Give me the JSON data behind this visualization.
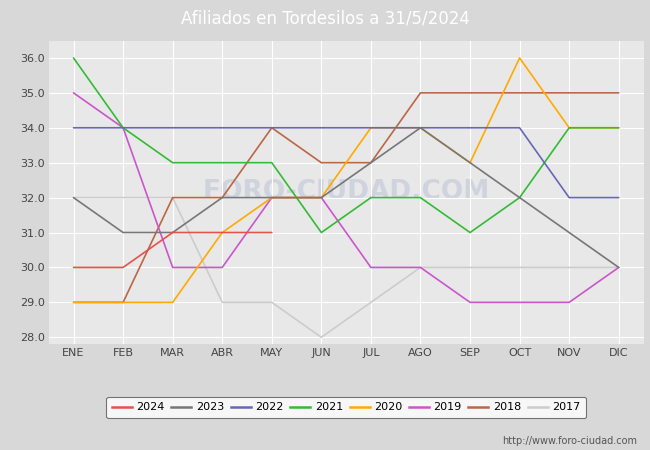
{
  "title": "Afiliados en Tordesilos a 31/5/2024",
  "title_bg": "#4d8fcc",
  "months": [
    "ENE",
    "FEB",
    "MAR",
    "ABR",
    "MAY",
    "JUN",
    "JUL",
    "AGO",
    "SEP",
    "OCT",
    "NOV",
    "DIC"
  ],
  "ylim": [
    27.8,
    36.5
  ],
  "yticks": [
    28.0,
    29.0,
    30.0,
    31.0,
    32.0,
    33.0,
    34.0,
    35.0,
    36.0
  ],
  "series": {
    "2024": {
      "color": "#e8504a",
      "data": [
        30.0,
        30.0,
        31.0,
        31.0,
        31.0,
        null,
        null,
        null,
        null,
        null,
        null,
        null
      ]
    },
    "2023": {
      "color": "#777777",
      "data": [
        32.0,
        31.0,
        31.0,
        32.0,
        32.0,
        32.0,
        33.0,
        34.0,
        33.0,
        32.0,
        31.0,
        30.0
      ]
    },
    "2022": {
      "color": "#6666bb",
      "data": [
        34.0,
        34.0,
        34.0,
        34.0,
        34.0,
        34.0,
        34.0,
        34.0,
        34.0,
        34.0,
        32.0,
        32.0
      ]
    },
    "2021": {
      "color": "#33bb33",
      "data": [
        36.0,
        34.0,
        33.0,
        33.0,
        33.0,
        31.0,
        32.0,
        32.0,
        31.0,
        32.0,
        34.0,
        34.0
      ]
    },
    "2020": {
      "color": "#ffaa00",
      "data": [
        29.0,
        29.0,
        29.0,
        31.0,
        32.0,
        32.0,
        34.0,
        34.0,
        33.0,
        36.0,
        34.0,
        34.0
      ]
    },
    "2019": {
      "color": "#cc55cc",
      "data": [
        35.0,
        34.0,
        30.0,
        30.0,
        32.0,
        32.0,
        30.0,
        30.0,
        29.0,
        29.0,
        29.0,
        30.0
      ]
    },
    "2018": {
      "color": "#bb6644",
      "data": [
        29.0,
        29.0,
        32.0,
        32.0,
        34.0,
        33.0,
        33.0,
        35.0,
        35.0,
        35.0,
        35.0,
        35.0
      ]
    },
    "2017": {
      "color": "#cccccc",
      "data": [
        32.0,
        32.0,
        32.0,
        29.0,
        29.0,
        28.0,
        29.0,
        30.0,
        30.0,
        30.0,
        30.0,
        30.0
      ]
    }
  },
  "fig_bg": "#d8d8d8",
  "plot_bg": "#e8e8e8",
  "grid_color": "#ffffff",
  "tick_color": "#444444",
  "url": "http://www.foro-ciudad.com",
  "watermark": "FORO-CIUDAD.COM"
}
